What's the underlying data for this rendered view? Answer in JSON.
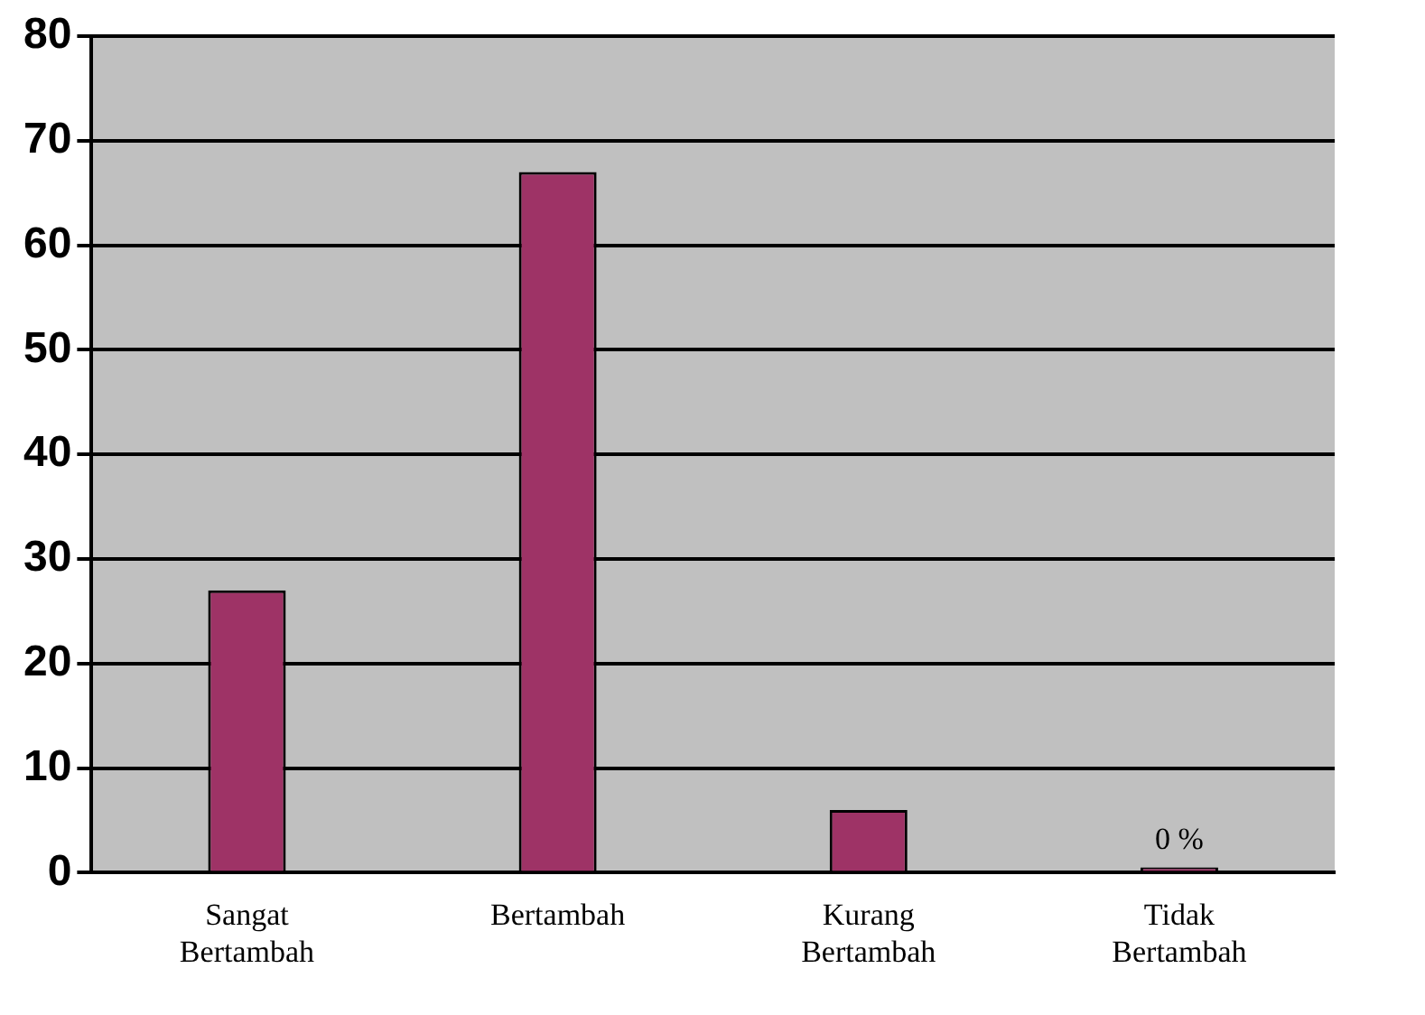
{
  "chart_data": {
    "type": "bar",
    "categories": [
      "Sangat Bertambah",
      "Bertambah",
      "Kurang Bertambah",
      "Tidak Bertambah"
    ],
    "values": [
      27,
      67,
      6,
      0
    ],
    "color": "#9e3366",
    "value_labels": [
      null,
      null,
      null,
      "0 %"
    ],
    "ylim": [
      0,
      80
    ],
    "yticks": [
      0,
      10,
      20,
      30,
      40,
      50,
      60,
      70,
      80
    ],
    "grid": "y"
  }
}
